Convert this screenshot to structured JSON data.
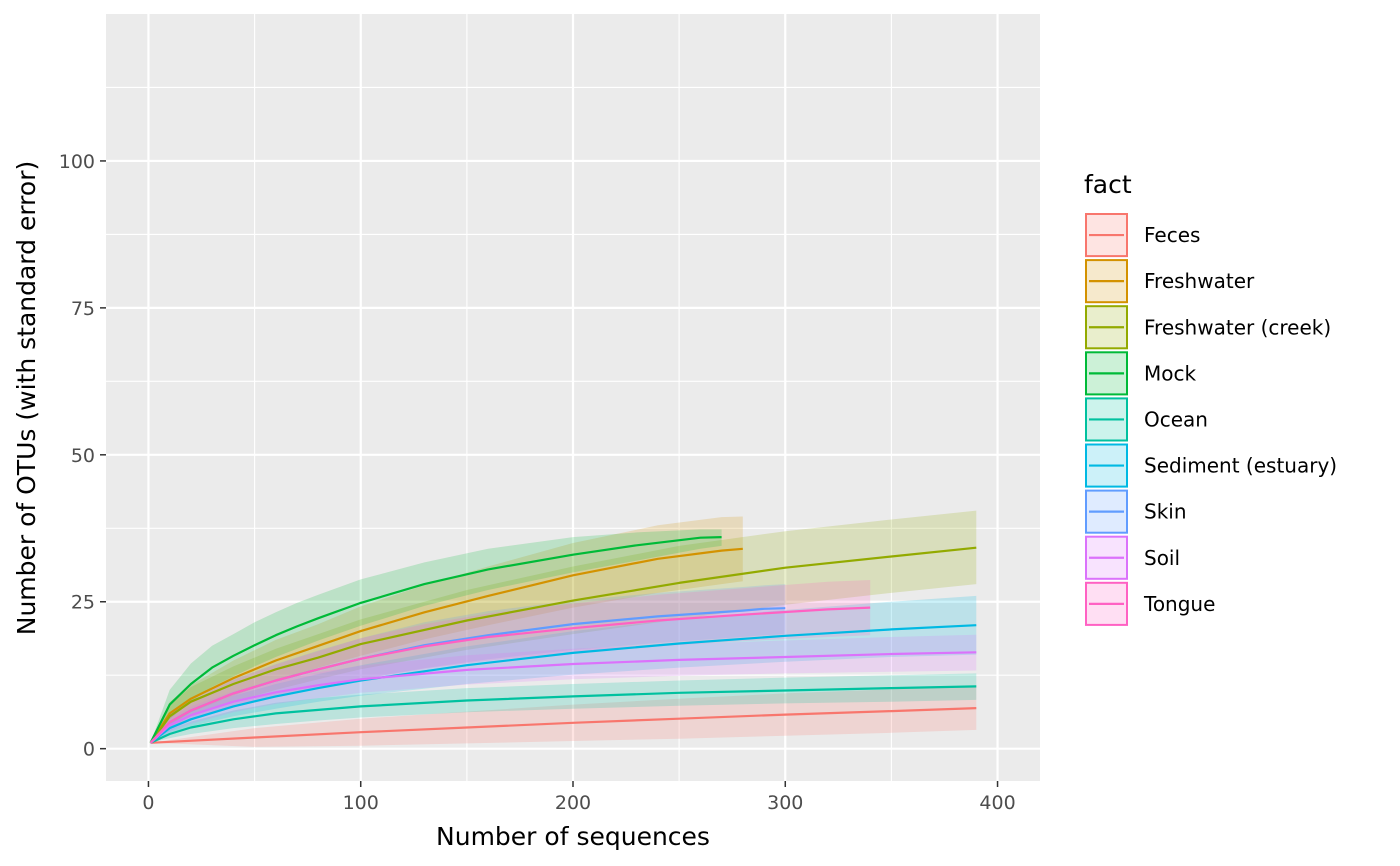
{
  "chart_data": {
    "type": "line",
    "xlabel": "Number of sequences",
    "ylabel": "Number of OTUs (with standard error)",
    "xlim": [
      -20,
      420
    ],
    "ylim": [
      -5.5,
      125
    ],
    "x_ticks": [
      0,
      100,
      200,
      300,
      400
    ],
    "y_ticks": [
      0,
      25,
      50,
      75,
      100
    ],
    "x_tick_labels": [
      "0",
      "100",
      "200",
      "300",
      "400"
    ],
    "y_tick_labels": [
      "0",
      "25",
      "50",
      "75",
      "100"
    ],
    "grid": true,
    "legend_title": "fact",
    "legend_position": "right",
    "series": [
      {
        "name": "Feces",
        "color": "#F8766D",
        "x": [
          1,
          50,
          100,
          150,
          200,
          250,
          300,
          350,
          390
        ],
        "y": [
          1,
          1.9,
          2.8,
          3.6,
          4.4,
          5.1,
          5.8,
          6.4,
          6.9
        ],
        "lower": [
          1,
          0.3,
          0.5,
          0.9,
          1.3,
          1.7,
          2.2,
          2.7,
          3.2
        ],
        "upper": [
          1,
          3.5,
          5.1,
          6.3,
          7.5,
          8.5,
          9.4,
          10.1,
          10.6
        ]
      },
      {
        "name": "Freshwater",
        "color": "#D39200",
        "x": [
          1,
          10,
          20,
          40,
          60,
          80,
          100,
          130,
          160,
          200,
          240,
          270,
          280
        ],
        "y": [
          1,
          6,
          8.5,
          12,
          15,
          17.5,
          20,
          23.2,
          26,
          29.5,
          32.3,
          33.7,
          34
        ],
        "lower": [
          1,
          4,
          6.2,
          9,
          11.5,
          13.8,
          15.8,
          18.6,
          21,
          24,
          26.5,
          28,
          28.5
        ],
        "upper": [
          1,
          8,
          10.8,
          15,
          18.5,
          21.2,
          24.2,
          27.8,
          31,
          35,
          38,
          39.4,
          39.5
        ]
      },
      {
        "name": "Freshwater (creek)",
        "color": "#93AA00",
        "x": [
          1,
          10,
          20,
          40,
          60,
          80,
          100,
          150,
          200,
          250,
          300,
          350,
          390
        ],
        "y": [
          1,
          5.5,
          8,
          11,
          13.5,
          15.5,
          17.8,
          21.8,
          25.2,
          28.2,
          30.8,
          32.7,
          34.2
        ],
        "lower": [
          1,
          3.5,
          5.5,
          8,
          10,
          11.8,
          13.5,
          16.8,
          19.5,
          22,
          24.5,
          26.5,
          28
        ],
        "upper": [
          1,
          7.5,
          10.5,
          14,
          17,
          19.5,
          22,
          27,
          31,
          34.5,
          37,
          39,
          40.5
        ]
      },
      {
        "name": "Mock",
        "color": "#00BA38",
        "x": [
          1,
          10,
          20,
          30,
          40,
          50,
          60,
          70,
          80,
          100,
          130,
          160,
          200,
          230,
          260,
          270
        ],
        "y": [
          1,
          7.5,
          11,
          13.8,
          15.8,
          17.6,
          19.3,
          20.8,
          22.2,
          24.8,
          28,
          30.5,
          33,
          34.6,
          35.9,
          36
        ],
        "lower": [
          1,
          5,
          8,
          10.5,
          12.3,
          14,
          15.6,
          17,
          18.4,
          20.9,
          24.3,
          27,
          30,
          32,
          34,
          34.5
        ],
        "upper": [
          1,
          10,
          14.5,
          17.5,
          19.5,
          21.5,
          23.2,
          24.8,
          26.2,
          28.8,
          31.7,
          34,
          36,
          36.8,
          37.3,
          37.3
        ]
      },
      {
        "name": "Ocean",
        "color": "#00C19F",
        "x": [
          1,
          10,
          20,
          40,
          60,
          80,
          100,
          150,
          200,
          250,
          300,
          350,
          390
        ],
        "y": [
          1,
          2.5,
          3.6,
          5,
          6,
          6.6,
          7.2,
          8.2,
          8.9,
          9.5,
          9.9,
          10.3,
          10.6
        ],
        "lower": [
          1,
          1.8,
          2.5,
          3.5,
          4.2,
          4.8,
          5.3,
          6.2,
          6.8,
          7.3,
          7.7,
          8,
          8.3
        ],
        "upper": [
          1,
          3.2,
          4.6,
          6.5,
          7.8,
          8.6,
          9.2,
          10.3,
          11,
          11.6,
          12.1,
          12.5,
          12.8
        ]
      },
      {
        "name": "Sediment (estuary)",
        "color": "#00B9E3",
        "x": [
          1,
          10,
          20,
          40,
          60,
          80,
          100,
          150,
          200,
          250,
          300,
          350,
          390
        ],
        "y": [
          1,
          3.5,
          5,
          7.2,
          8.9,
          10.3,
          11.6,
          14.2,
          16.3,
          17.9,
          19.2,
          20.3,
          21
        ],
        "lower": [
          1,
          2.5,
          3.8,
          5.5,
          6.8,
          8,
          9,
          11,
          12.6,
          13.8,
          14.8,
          15.6,
          16
        ],
        "upper": [
          1,
          4.5,
          6.3,
          9,
          11,
          12.7,
          14.2,
          17.4,
          20,
          22,
          23.6,
          25,
          26
        ]
      },
      {
        "name": "Skin",
        "color": "#619CFF",
        "x": [
          1,
          10,
          20,
          40,
          60,
          80,
          100,
          130,
          160,
          200,
          240,
          280,
          290,
          300
        ],
        "y": [
          1,
          4.5,
          6.5,
          9.4,
          11.6,
          13.5,
          15.3,
          17.6,
          19.3,
          21.2,
          22.5,
          23.5,
          23.8,
          23.9
        ],
        "lower": [
          1,
          3,
          4.8,
          7,
          8.8,
          10.3,
          11.8,
          13.7,
          15.2,
          16.8,
          18,
          19,
          19.3,
          19.5
        ],
        "upper": [
          1,
          6,
          8.2,
          11.8,
          14.4,
          16.7,
          18.8,
          21.5,
          23.4,
          25.2,
          26.5,
          27.5,
          27.8,
          28
        ]
      },
      {
        "name": "Soil",
        "color": "#DB72FB",
        "x": [
          1,
          10,
          20,
          40,
          60,
          80,
          100,
          150,
          200,
          250,
          300,
          350,
          390
        ],
        "y": [
          1,
          4,
          5.7,
          8,
          9.6,
          10.8,
          11.8,
          13.4,
          14.4,
          15.1,
          15.6,
          16.1,
          16.4
        ],
        "lower": [
          1,
          2.8,
          4.2,
          6.2,
          7.6,
          8.6,
          9.5,
          10.9,
          11.8,
          12.4,
          12.8,
          13.1,
          13.3
        ],
        "upper": [
          1,
          5.2,
          7.2,
          9.8,
          11.6,
          13,
          14.1,
          15.9,
          17,
          17.8,
          18.4,
          19,
          19.4
        ]
      },
      {
        "name": "Tongue",
        "color": "#FF61C3",
        "x": [
          1,
          10,
          20,
          40,
          60,
          80,
          100,
          130,
          160,
          200,
          240,
          280,
          320,
          340
        ],
        "y": [
          1,
          4.5,
          6.5,
          9.4,
          11.6,
          13.5,
          15.3,
          17.4,
          19,
          20.5,
          21.8,
          22.8,
          23.7,
          24
        ],
        "lower": [
          1,
          3.2,
          4.8,
          7.1,
          8.9,
          10.4,
          11.8,
          13.6,
          15,
          16.3,
          17.4,
          18.3,
          19,
          19.3
        ],
        "upper": [
          1,
          5.8,
          8.2,
          11.7,
          14.3,
          16.6,
          18.8,
          21.2,
          23,
          24.7,
          26.2,
          27.3,
          28.4,
          28.7
        ]
      }
    ]
  }
}
